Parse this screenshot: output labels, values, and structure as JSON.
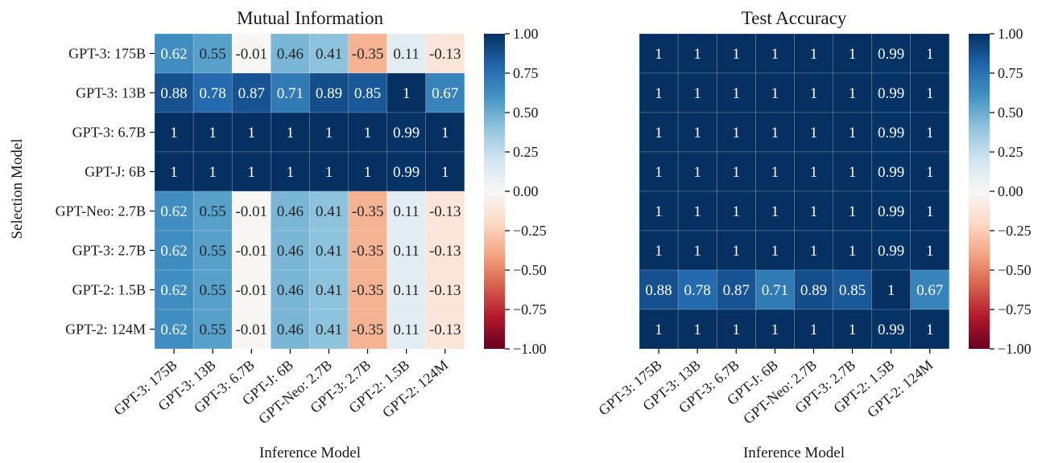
{
  "chart_data": [
    {
      "type": "heatmap",
      "title": "Mutual Information",
      "xlabel": "Inference Model",
      "ylabel": "Selection Model",
      "x_categories": [
        "GPT-3: 175B",
        "GPT-3: 13B",
        "GPT-3: 6.7B",
        "GPT-J: 6B",
        "GPT-Neo: 2.7B",
        "GPT-3: 2.7B",
        "GPT-2: 1.5B",
        "GPT-2: 124M"
      ],
      "y_categories": [
        "GPT-3: 175B",
        "GPT-3: 13B",
        "GPT-3: 6.7B",
        "GPT-J: 6B",
        "GPT-Neo: 2.7B",
        "GPT-3: 2.7B",
        "GPT-2: 1.5B",
        "GPT-2: 124M"
      ],
      "values": [
        [
          0.62,
          0.55,
          -0.01,
          0.46,
          0.41,
          -0.35,
          0.11,
          -0.13
        ],
        [
          0.88,
          0.78,
          0.87,
          0.71,
          0.89,
          0.85,
          1,
          0.67
        ],
        [
          1,
          1,
          1,
          1,
          1,
          1,
          0.99,
          1
        ],
        [
          1,
          1,
          1,
          1,
          1,
          1,
          0.99,
          1
        ],
        [
          0.62,
          0.55,
          -0.01,
          0.46,
          0.41,
          -0.35,
          0.11,
          -0.13
        ],
        [
          0.62,
          0.55,
          -0.01,
          0.46,
          0.41,
          -0.35,
          0.11,
          -0.13
        ],
        [
          0.62,
          0.55,
          -0.01,
          0.46,
          0.41,
          -0.35,
          0.11,
          -0.13
        ],
        [
          0.62,
          0.55,
          -0.01,
          0.46,
          0.41,
          -0.35,
          0.11,
          -0.13
        ]
      ],
      "labels": [
        [
          "0.62",
          "0.55",
          "-0.01",
          "0.46",
          "0.41",
          "-0.35",
          "0.11",
          "-0.13"
        ],
        [
          "0.88",
          "0.78",
          "0.87",
          "0.71",
          "0.89",
          "0.85",
          "1",
          "0.67"
        ],
        [
          "1",
          "1",
          "1",
          "1",
          "1",
          "1",
          "0.99",
          "1"
        ],
        [
          "1",
          "1",
          "1",
          "1",
          "1",
          "1",
          "0.99",
          "1"
        ],
        [
          "0.62",
          "0.55",
          "-0.01",
          "0.46",
          "0.41",
          "-0.35",
          "0.11",
          "-0.13"
        ],
        [
          "0.62",
          "0.55",
          "-0.01",
          "0.46",
          "0.41",
          "-0.35",
          "0.11",
          "-0.13"
        ],
        [
          "0.62",
          "0.55",
          "-0.01",
          "0.46",
          "0.41",
          "-0.35",
          "0.11",
          "-0.13"
        ],
        [
          "0.62",
          "0.55",
          "-0.01",
          "0.46",
          "0.41",
          "-0.35",
          "0.11",
          "-0.13"
        ]
      ],
      "colorbar": {
        "range": [
          -1,
          1
        ],
        "ticks": [
          1,
          0.75,
          0.5,
          0.25,
          0,
          -0.25,
          -0.5,
          -0.75,
          -1
        ],
        "tick_labels": [
          "1.00",
          "0.75",
          "0.50",
          "0.25",
          "0.00",
          "−0.25",
          "−0.50",
          "−0.75",
          "−1.00"
        ],
        "colormap": "RdBu"
      }
    },
    {
      "type": "heatmap",
      "title": "Test Accuracy",
      "xlabel": "Inference Model",
      "ylabel": "",
      "x_categories": [
        "GPT-3: 175B",
        "GPT-3: 13B",
        "GPT-3: 6.7B",
        "GPT-J: 6B",
        "GPT-Neo: 2.7B",
        "GPT-3: 2.7B",
        "GPT-2: 1.5B",
        "GPT-2: 124M"
      ],
      "y_categories": [],
      "values": [
        [
          1,
          1,
          1,
          1,
          1,
          1,
          0.99,
          1
        ],
        [
          1,
          1,
          1,
          1,
          1,
          1,
          0.99,
          1
        ],
        [
          1,
          1,
          1,
          1,
          1,
          1,
          0.99,
          1
        ],
        [
          1,
          1,
          1,
          1,
          1,
          1,
          0.99,
          1
        ],
        [
          1,
          1,
          1,
          1,
          1,
          1,
          0.99,
          1
        ],
        [
          1,
          1,
          1,
          1,
          1,
          1,
          0.99,
          1
        ],
        [
          0.88,
          0.78,
          0.87,
          0.71,
          0.89,
          0.85,
          1,
          0.67
        ],
        [
          1,
          1,
          1,
          1,
          1,
          1,
          0.99,
          1
        ]
      ],
      "labels": [
        [
          "1",
          "1",
          "1",
          "1",
          "1",
          "1",
          "0.99",
          "1"
        ],
        [
          "1",
          "1",
          "1",
          "1",
          "1",
          "1",
          "0.99",
          "1"
        ],
        [
          "1",
          "1",
          "1",
          "1",
          "1",
          "1",
          "0.99",
          "1"
        ],
        [
          "1",
          "1",
          "1",
          "1",
          "1",
          "1",
          "0.99",
          "1"
        ],
        [
          "1",
          "1",
          "1",
          "1",
          "1",
          "1",
          "0.99",
          "1"
        ],
        [
          "1",
          "1",
          "1",
          "1",
          "1",
          "1",
          "0.99",
          "1"
        ],
        [
          "0.88",
          "0.78",
          "0.87",
          "0.71",
          "0.89",
          "0.85",
          "1",
          "0.67"
        ],
        [
          "1",
          "1",
          "1",
          "1",
          "1",
          "1",
          "0.99",
          "1"
        ]
      ],
      "colorbar": {
        "range": [
          -1,
          1
        ],
        "ticks": [
          1,
          0.75,
          0.5,
          0.25,
          0,
          -0.25,
          -0.5,
          -0.75,
          -1
        ],
        "tick_labels": [
          "1.00",
          "0.75",
          "0.50",
          "0.25",
          "0.00",
          "−0.25",
          "−0.50",
          "−0.75",
          "−1.00"
        ],
        "colormap": "RdBu"
      }
    }
  ]
}
